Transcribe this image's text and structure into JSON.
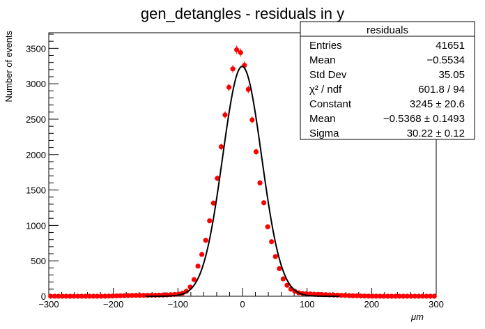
{
  "chart_data": {
    "type": "scatter",
    "title": "gen_detangles - residuals in y",
    "xlabel": "μm",
    "ylabel": "Number of events",
    "xlim": [
      -300,
      300
    ],
    "ylim": [
      0,
      3720
    ],
    "grid": false,
    "x_ticks": [
      -300,
      -200,
      -100,
      0,
      100,
      200,
      300
    ],
    "y_ticks": [
      0,
      500,
      1000,
      1500,
      2000,
      2500,
      3000,
      3500
    ],
    "series": [
      {
        "kind": "histogram-points-with-errors",
        "color": "#ff0000",
        "x": [
          -297,
          -291,
          -285,
          -279,
          -273,
          -267,
          -261,
          -255,
          -249,
          -243,
          -237,
          -231,
          -225,
          -219,
          -213,
          -207,
          -201,
          -195,
          -189,
          -183,
          -177,
          -171,
          -165,
          -159,
          -153,
          -147,
          -141,
          -135,
          -129,
          -123,
          -117,
          -111,
          -105,
          -99,
          -93,
          -87,
          -81,
          -75,
          -69,
          -63,
          -57,
          -51,
          -45,
          -39,
          -33,
          -27,
          -21,
          -15,
          -9,
          -3,
          3,
          9,
          15,
          21,
          27,
          33,
          39,
          45,
          51,
          57,
          63,
          69,
          75,
          81,
          87,
          93,
          99,
          105,
          111,
          117,
          123,
          129,
          135,
          141,
          147,
          153,
          159,
          165,
          171,
          177,
          183,
          189,
          195,
          201,
          207,
          213,
          219,
          225,
          231,
          237,
          243,
          249,
          255,
          261,
          267,
          273,
          279,
          285,
          291,
          297
        ],
        "y": [
          0,
          0,
          0,
          0,
          0,
          0,
          0,
          0,
          0,
          0,
          0,
          0,
          0,
          0,
          1,
          2,
          3,
          5,
          7,
          8,
          9,
          11,
          12,
          12,
          13,
          13,
          14,
          15,
          16,
          17,
          19,
          22,
          26,
          30,
          42,
          70,
          130,
          235,
          425,
          590,
          790,
          1065,
          1315,
          1665,
          2110,
          2560,
          2950,
          3210,
          3480,
          3440,
          3260,
          2920,
          2490,
          2040,
          1600,
          1320,
          980,
          770,
          560,
          390,
          245,
          155,
          100,
          70,
          48,
          40,
          35,
          32,
          28,
          26,
          24,
          22,
          19,
          17,
          15,
          13,
          11,
          9,
          7,
          6,
          4,
          3,
          2,
          1,
          1,
          0,
          0,
          0,
          0,
          0,
          0,
          0,
          0,
          0,
          0,
          0,
          0,
          0,
          0,
          0
        ]
      },
      {
        "kind": "gaussian-fit",
        "color": "#000000",
        "constant": 3245,
        "mean": -0.5368,
        "sigma": 30.22
      }
    ],
    "stats_box": {
      "title": "residuals",
      "rows": [
        {
          "label": "Entries",
          "value": "41651"
        },
        {
          "label": "Mean",
          "value": "−0.5534"
        },
        {
          "label": "Std Dev",
          "value": "35.05"
        },
        {
          "label": "χ² / ndf",
          "value": "601.8 / 94"
        },
        {
          "label": "Constant",
          "value": "3245  ± 20.6"
        },
        {
          "label": "Mean",
          "value": "−0.5368  ± 0.1493"
        },
        {
          "label": "Sigma",
          "value": "30.22  ± 0.12"
        }
      ],
      "placement": "top-right"
    }
  }
}
